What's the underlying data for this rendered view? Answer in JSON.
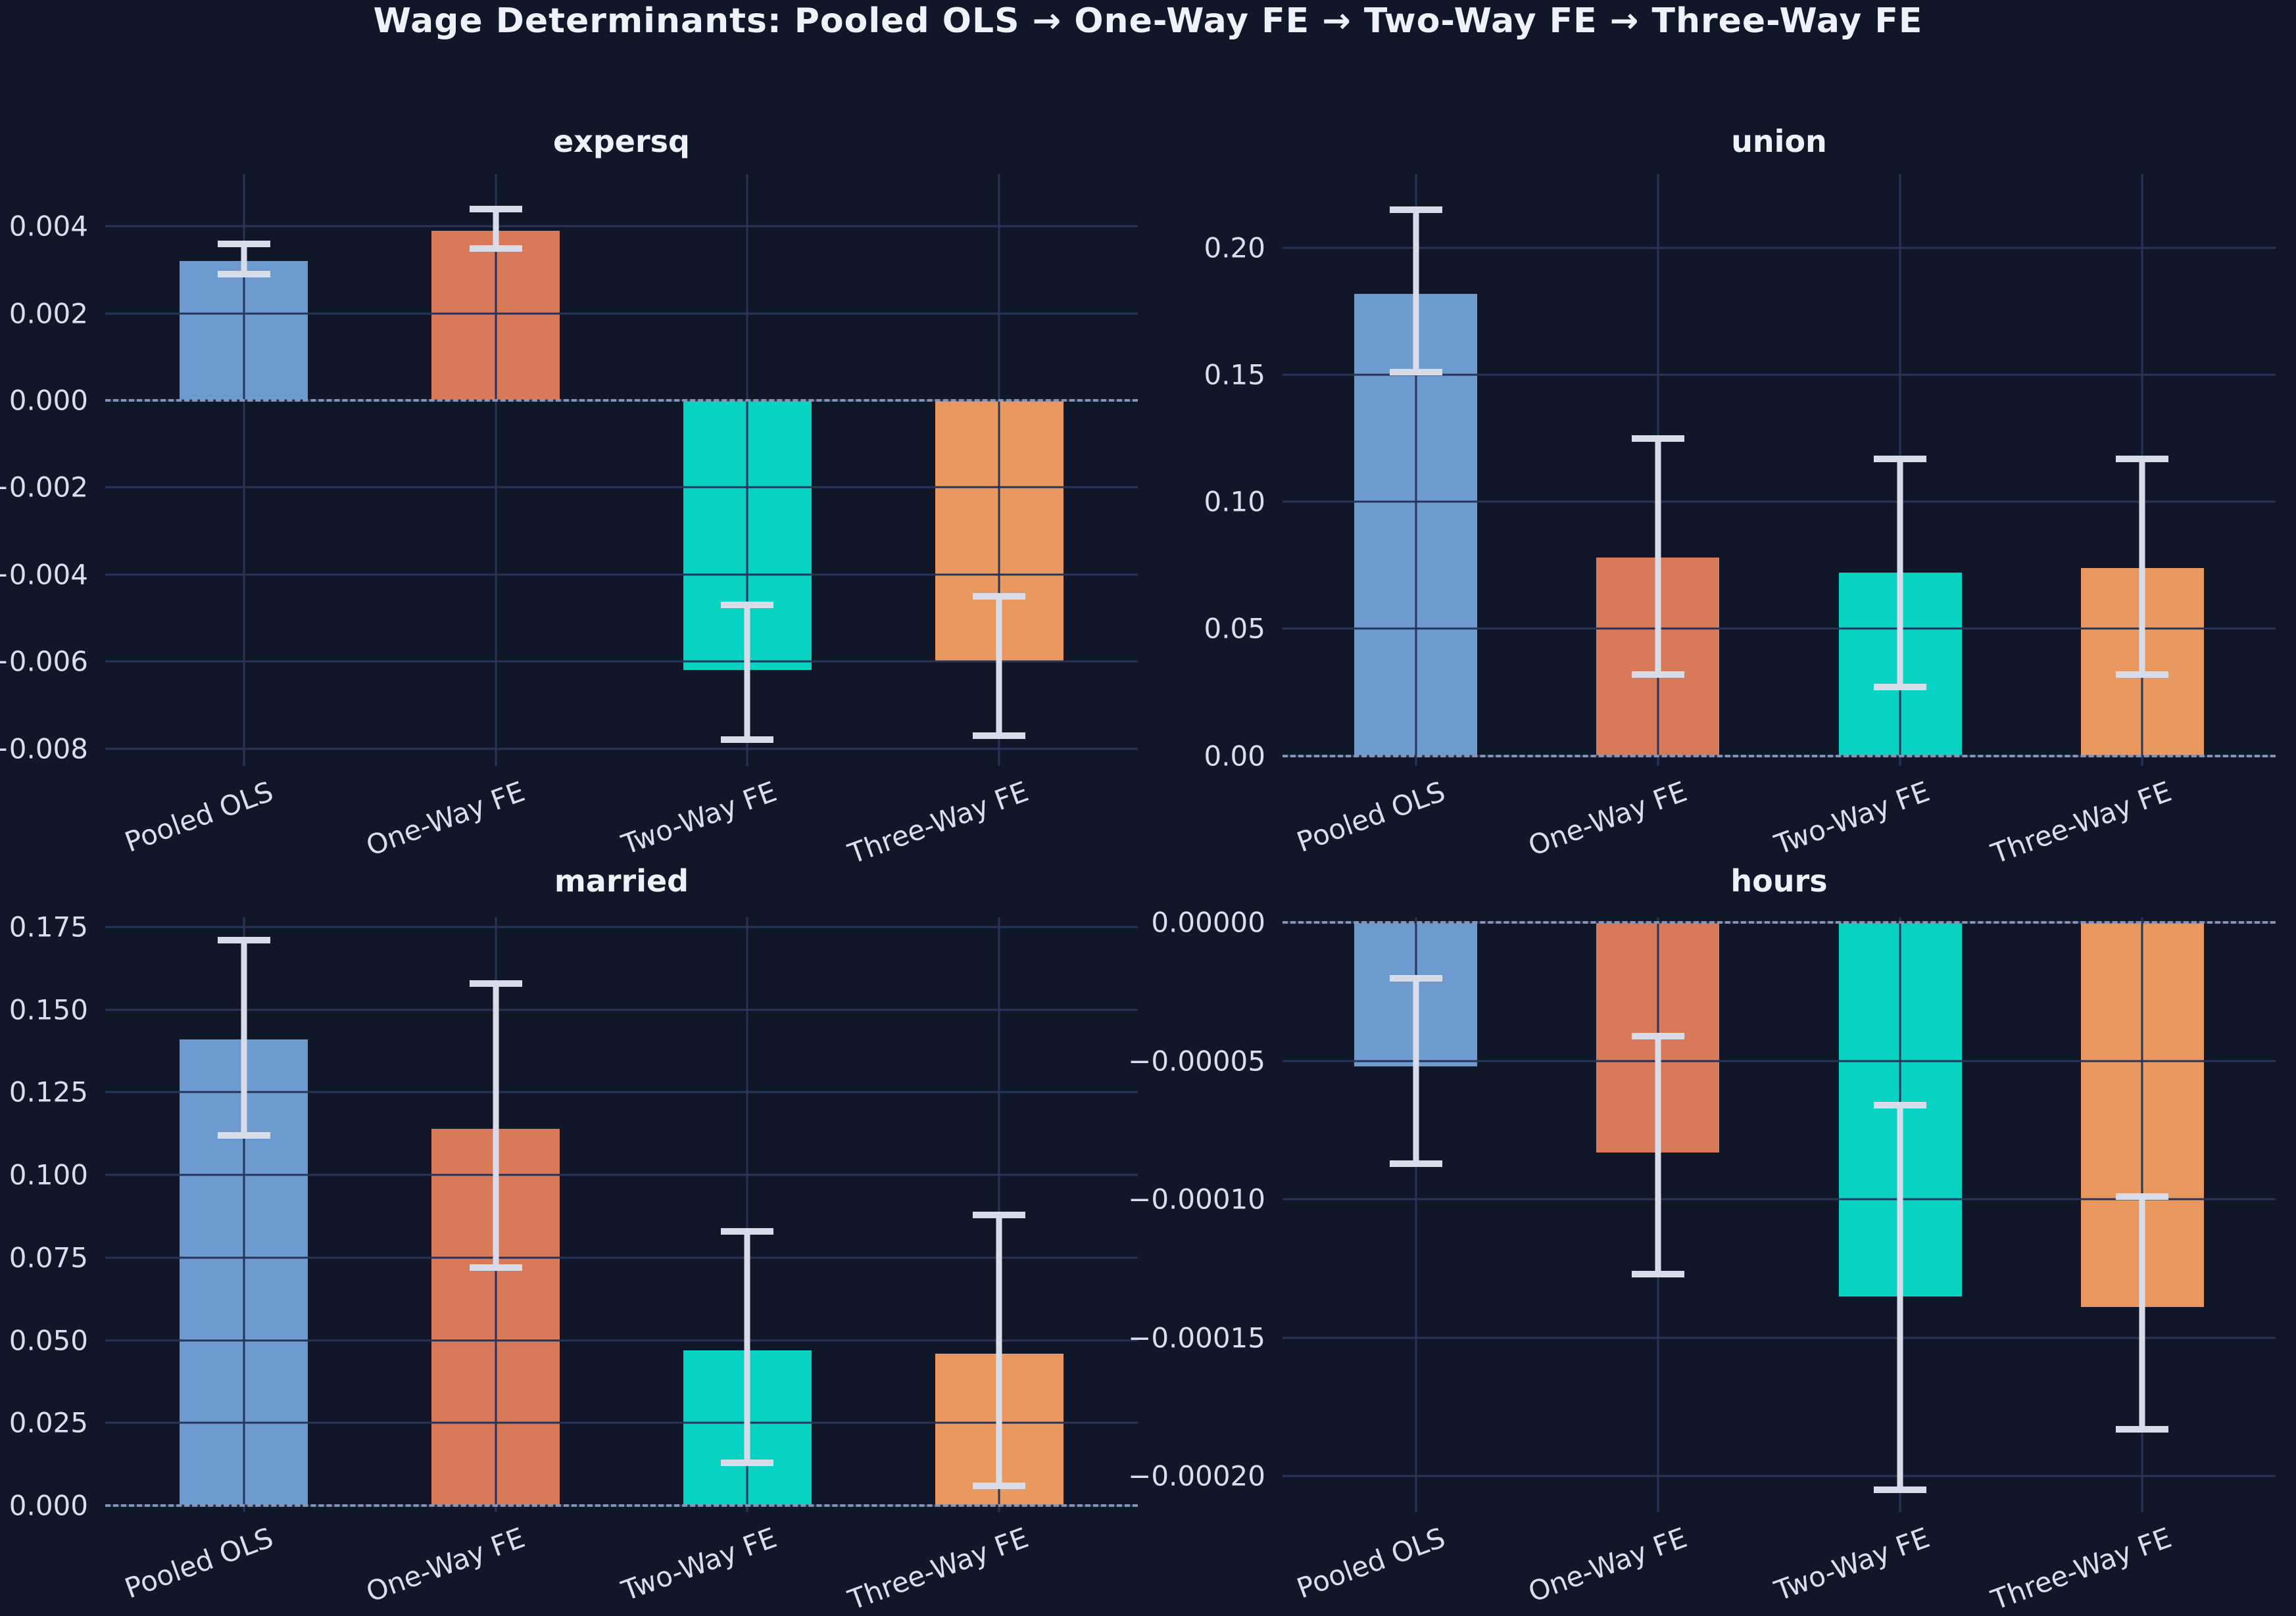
{
  "figure": {
    "title": "Wage Determinants: Pooled OLS → One-Way FE → Two-Way FE → Three-Way FE",
    "background_color": "#101729",
    "grid_color": "#263459",
    "text_color": "#d9deea",
    "title_color": "#eef1f8",
    "error_bar_color": "#d8dce9",
    "zero_line_color": "#99a4c2"
  },
  "chart_data": [
    {
      "type": "bar",
      "title": "expersq",
      "categories": [
        "Pooled OLS",
        "One-Way FE",
        "Two-Way FE",
        "Three-Way FE"
      ],
      "values": [
        0.0032,
        0.0039,
        -0.0062,
        -0.006
      ],
      "ci_low": [
        0.0029,
        0.0035,
        -0.0078,
        -0.0077
      ],
      "ci_high": [
        0.0036,
        0.0044,
        -0.0047,
        -0.0045
      ],
      "bar_colors": [
        "#6d9bd0",
        "#d8795a",
        "#08d2c2",
        "#e9995f"
      ],
      "ylim": [
        -0.0084,
        0.0052
      ],
      "yticks": [
        {
          "v": 0.004,
          "label": "0.004"
        },
        {
          "v": 0.002,
          "label": "0.002"
        },
        {
          "v": 0.0,
          "label": "0.000"
        },
        {
          "v": -0.002,
          "label": "−0.002"
        },
        {
          "v": -0.004,
          "label": "−0.004"
        },
        {
          "v": -0.006,
          "label": "−0.006"
        },
        {
          "v": -0.008,
          "label": "−0.008"
        }
      ],
      "grid": true,
      "zero_line": true,
      "xtick_rotation": 20
    },
    {
      "type": "bar",
      "title": "union",
      "categories": [
        "Pooled OLS",
        "One-Way FE",
        "Two-Way FE",
        "Three-Way FE"
      ],
      "values": [
        0.182,
        0.078,
        0.072,
        0.074
      ],
      "ci_low": [
        0.151,
        0.032,
        0.027,
        0.032
      ],
      "ci_high": [
        0.215,
        0.125,
        0.117,
        0.117
      ],
      "bar_colors": [
        "#6d9bd0",
        "#d8795a",
        "#08d2c2",
        "#e9995f"
      ],
      "ylim": [
        -0.004,
        0.229
      ],
      "yticks": [
        {
          "v": 0.2,
          "label": "0.20"
        },
        {
          "v": 0.15,
          "label": "0.15"
        },
        {
          "v": 0.1,
          "label": "0.10"
        },
        {
          "v": 0.05,
          "label": "0.05"
        },
        {
          "v": 0.0,
          "label": "0.00"
        }
      ],
      "grid": true,
      "zero_line": true,
      "xtick_rotation": 20
    },
    {
      "type": "bar",
      "title": "married",
      "categories": [
        "Pooled OLS",
        "One-Way FE",
        "Two-Way FE",
        "Three-Way FE"
      ],
      "values": [
        0.141,
        0.114,
        0.047,
        0.046
      ],
      "ci_low": [
        0.112,
        0.072,
        0.013,
        0.006
      ],
      "ci_high": [
        0.171,
        0.158,
        0.083,
        0.088
      ],
      "bar_colors": [
        "#6d9bd0",
        "#d8795a",
        "#08d2c2",
        "#e9995f"
      ],
      "ylim": [
        -0.002,
        0.178
      ],
      "yticks": [
        {
          "v": 0.175,
          "label": "0.175"
        },
        {
          "v": 0.15,
          "label": "0.150"
        },
        {
          "v": 0.125,
          "label": "0.125"
        },
        {
          "v": 0.1,
          "label": "0.100"
        },
        {
          "v": 0.075,
          "label": "0.075"
        },
        {
          "v": 0.05,
          "label": "0.050"
        },
        {
          "v": 0.025,
          "label": "0.025"
        },
        {
          "v": 0.0,
          "label": "0.000"
        }
      ],
      "grid": true,
      "zero_line": true,
      "xtick_rotation": 20
    },
    {
      "type": "bar",
      "title": "hours",
      "categories": [
        "Pooled OLS",
        "One-Way FE",
        "Two-Way FE",
        "Three-Way FE"
      ],
      "values": [
        -5.2e-05,
        -8.3e-05,
        -0.000135,
        -0.000139
      ],
      "ci_low": [
        -8.7e-05,
        -0.000127,
        -0.000205,
        -0.000183
      ],
      "ci_high": [
        -2e-05,
        -4.1e-05,
        -6.6e-05,
        -9.9e-05
      ],
      "bar_colors": [
        "#6d9bd0",
        "#d8795a",
        "#08d2c2",
        "#e9995f"
      ],
      "ylim": [
        -0.000213,
        2e-06
      ],
      "yticks": [
        {
          "v": 0.0,
          "label": "0.00000"
        },
        {
          "v": -5e-05,
          "label": "−0.00005"
        },
        {
          "v": -0.0001,
          "label": "−0.00010"
        },
        {
          "v": -0.00015,
          "label": "−0.00015"
        },
        {
          "v": -0.0002,
          "label": "−0.00020"
        }
      ],
      "grid": true,
      "zero_line": true,
      "xtick_rotation": 20
    }
  ]
}
